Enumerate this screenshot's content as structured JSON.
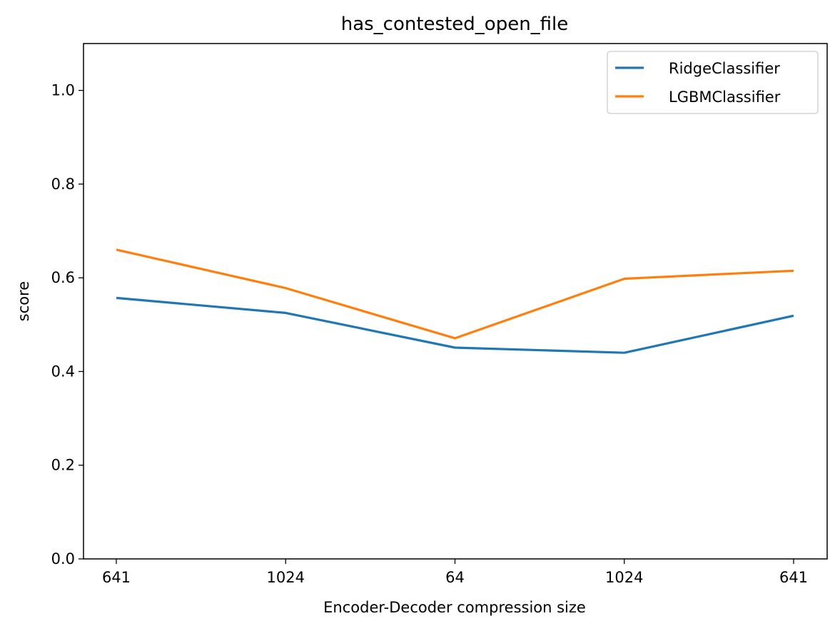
{
  "chart_data": {
    "type": "line",
    "title": "has_contested_open_file",
    "xlabel": "Encoder-Decoder compression size",
    "ylabel": "score",
    "categories": [
      "641",
      "1024",
      "64",
      "1024",
      "641"
    ],
    "ylim": [
      0,
      1.1
    ],
    "yticks": [
      0.0,
      0.2,
      0.4,
      0.6,
      0.8,
      1.0
    ],
    "ytick_labels": [
      "0.0",
      "0.2",
      "0.4",
      "0.6",
      "0.8",
      "1.0"
    ],
    "grid": false,
    "legend_position": "top-right",
    "series": [
      {
        "name": "RidgeClassifier",
        "color": "#1f77b4",
        "values": [
          0.557,
          0.525,
          0.451,
          0.44,
          0.519
        ]
      },
      {
        "name": "LGBMClassifier",
        "color": "#ff7f0e",
        "values": [
          0.66,
          0.578,
          0.471,
          0.598,
          0.615
        ]
      }
    ]
  }
}
